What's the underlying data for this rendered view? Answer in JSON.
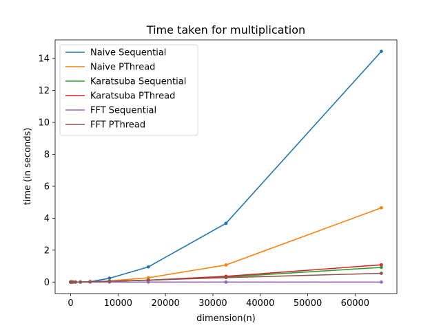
{
  "chart_data": {
    "type": "line",
    "title": "Time taken for multiplication",
    "xlabel": "dimension(n)",
    "ylabel": "time (in seconds)",
    "xlim": [
      -3277,
      68813
    ],
    "ylim": [
      -0.72,
      15.17
    ],
    "xticks": [
      0,
      10000,
      20000,
      30000,
      40000,
      50000,
      60000
    ],
    "yticks": [
      0,
      2,
      4,
      6,
      8,
      10,
      12,
      14
    ],
    "grid": false,
    "legend_position": "top-left",
    "x": [
      2,
      4,
      8,
      16,
      32,
      64,
      128,
      256,
      512,
      1024,
      2048,
      4096,
      8192,
      16384,
      32768,
      65536
    ],
    "series": [
      {
        "name": "Naive Sequential",
        "color": "#1f77b4",
        "values": [
          0,
          0,
          0,
          0,
          0,
          0,
          0,
          0,
          0,
          0.001,
          0.004,
          0.02,
          0.24,
          0.95,
          3.68,
          14.45
        ]
      },
      {
        "name": "Naive PThread",
        "color": "#ff7f0e",
        "values": [
          0,
          0,
          0,
          0,
          0,
          0,
          0,
          0,
          0,
          0.001,
          0.002,
          0.01,
          0.07,
          0.27,
          1.07,
          4.65
        ]
      },
      {
        "name": "Karatsuba Sequential",
        "color": "#2ca02c",
        "values": [
          0,
          0,
          0,
          0,
          0,
          0,
          0,
          0,
          0,
          0.001,
          0.002,
          0.02,
          0.05,
          0.11,
          0.32,
          0.92
        ]
      },
      {
        "name": "Karatsuba PThread",
        "color": "#d62728",
        "values": [
          0,
          0,
          0,
          0,
          0,
          0,
          0,
          0,
          0,
          0.001,
          0.002,
          0.02,
          0.05,
          0.12,
          0.36,
          1.08
        ]
      },
      {
        "name": "FFT Sequential",
        "color": "#9467bd",
        "values": [
          0,
          0,
          0,
          0,
          0,
          0,
          0,
          0,
          0,
          0,
          0,
          0,
          0,
          0,
          0,
          0
        ]
      },
      {
        "name": "FFT PThread",
        "color": "#8c564b",
        "values": [
          0,
          0,
          0,
          0,
          0,
          0,
          0,
          0,
          0,
          0.001,
          0.002,
          0.02,
          0.05,
          0.12,
          0.28,
          0.55
        ]
      }
    ]
  }
}
